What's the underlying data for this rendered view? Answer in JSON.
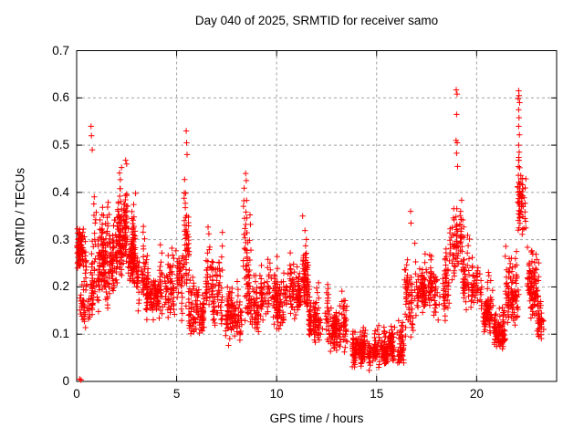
{
  "title": "Day 040 of 2025, SRMTID for receiver samo",
  "axes": {
    "xlabel": "GPS time / hours",
    "ylabel": "SRMTID / TECUs",
    "x_ticks": [
      {
        "label": "0",
        "value": 0
      },
      {
        "label": "5",
        "value": 5
      },
      {
        "label": "10",
        "value": 10
      },
      {
        "label": "15",
        "value": 15
      },
      {
        "label": "20",
        "value": 20
      }
    ],
    "y_ticks": [
      {
        "label": "0",
        "value": 0
      },
      {
        "label": "0.1",
        "value": 0.1
      },
      {
        "label": "0.2",
        "value": 0.2
      },
      {
        "label": "0.3",
        "value": 0.3
      },
      {
        "label": "0.4",
        "value": 0.4
      },
      {
        "label": "0.5",
        "value": 0.5
      },
      {
        "label": "0.6",
        "value": 0.6
      },
      {
        "label": "0.7",
        "value": 0.7
      }
    ]
  },
  "colors": {
    "marker": "#ff0000",
    "grid": "#a0a0a0",
    "axis": "#000000",
    "background": "#ffffff"
  },
  "chart_data": {
    "type": "scatter",
    "title": "Day 040 of 2025, SRMTID for receiver samo",
    "xlabel": "GPS time / hours",
    "ylabel": "SRMTID / TECUs",
    "xlim": [
      0,
      24
    ],
    "ylim": [
      0,
      0.7
    ],
    "grid": "dashed-gray-at-major-ticks",
    "legend": "none",
    "marker": "plus",
    "marker_color": "#ff0000",
    "seed": 42,
    "description": "Dense scatter of SRMTID values vs GPS time; bands give envelope clusters [x0,x1,y_lo,y_hi,n_points], outliers are individual extreme points [hour, TECU].",
    "bands": [
      {
        "x0": 0.0,
        "x1": 0.35,
        "y_lo": 0.24,
        "y_hi": 0.375,
        "n": 70
      },
      {
        "x0": 0.1,
        "x1": 0.45,
        "y_lo": 0.1,
        "y_hi": 0.22,
        "n": 25
      },
      {
        "x0": 0.35,
        "x1": 0.85,
        "y_lo": 0.12,
        "y_hi": 0.33,
        "n": 55
      },
      {
        "x0": 0.85,
        "x1": 1.35,
        "y_lo": 0.15,
        "y_hi": 0.44,
        "n": 85
      },
      {
        "x0": 1.35,
        "x1": 2.05,
        "y_lo": 0.16,
        "y_hi": 0.43,
        "n": 110
      },
      {
        "x0": 2.05,
        "x1": 2.55,
        "y_lo": 0.22,
        "y_hi": 0.47,
        "n": 120
      },
      {
        "x0": 2.55,
        "x1": 3.0,
        "y_lo": 0.2,
        "y_hi": 0.44,
        "n": 90
      },
      {
        "x0": 3.0,
        "x1": 3.6,
        "y_lo": 0.14,
        "y_hi": 0.36,
        "n": 85
      },
      {
        "x0": 3.6,
        "x1": 4.5,
        "y_lo": 0.12,
        "y_hi": 0.3,
        "n": 90
      },
      {
        "x0": 4.5,
        "x1": 5.25,
        "y_lo": 0.13,
        "y_hi": 0.35,
        "n": 85
      },
      {
        "x0": 5.25,
        "x1": 5.65,
        "y_lo": 0.16,
        "y_hi": 0.53,
        "n": 55
      },
      {
        "x0": 5.65,
        "x1": 6.5,
        "y_lo": 0.1,
        "y_hi": 0.28,
        "n": 95
      },
      {
        "x0": 6.5,
        "x1": 7.3,
        "y_lo": 0.11,
        "y_hi": 0.34,
        "n": 100
      },
      {
        "x0": 7.3,
        "x1": 8.25,
        "y_lo": 0.08,
        "y_hi": 0.26,
        "n": 100
      },
      {
        "x0": 8.25,
        "x1": 8.7,
        "y_lo": 0.13,
        "y_hi": 0.44,
        "n": 65
      },
      {
        "x0": 8.7,
        "x1": 9.6,
        "y_lo": 0.1,
        "y_hi": 0.3,
        "n": 90
      },
      {
        "x0": 9.6,
        "x1": 10.6,
        "y_lo": 0.11,
        "y_hi": 0.28,
        "n": 110
      },
      {
        "x0": 10.6,
        "x1": 11.15,
        "y_lo": 0.13,
        "y_hi": 0.3,
        "n": 85
      },
      {
        "x0": 11.15,
        "x1": 11.6,
        "y_lo": 0.14,
        "y_hi": 0.34,
        "n": 70
      },
      {
        "x0": 11.6,
        "x1": 12.6,
        "y_lo": 0.08,
        "y_hi": 0.24,
        "n": 105
      },
      {
        "x0": 12.6,
        "x1": 13.6,
        "y_lo": 0.06,
        "y_hi": 0.2,
        "n": 110
      },
      {
        "x0": 13.6,
        "x1": 14.6,
        "y_lo": 0.03,
        "y_hi": 0.15,
        "n": 120
      },
      {
        "x0": 14.6,
        "x1": 15.6,
        "y_lo": 0.025,
        "y_hi": 0.13,
        "n": 120
      },
      {
        "x0": 15.6,
        "x1": 16.45,
        "y_lo": 0.04,
        "y_hi": 0.16,
        "n": 100
      },
      {
        "x0": 16.45,
        "x1": 16.95,
        "y_lo": 0.09,
        "y_hi": 0.36,
        "n": 60
      },
      {
        "x0": 16.95,
        "x1": 17.65,
        "y_lo": 0.14,
        "y_hi": 0.3,
        "n": 80
      },
      {
        "x0": 17.65,
        "x1": 18.65,
        "y_lo": 0.13,
        "y_hi": 0.33,
        "n": 90
      },
      {
        "x0": 18.65,
        "x1": 19.35,
        "y_lo": 0.2,
        "y_hi": 0.46,
        "n": 80
      },
      {
        "x0": 19.35,
        "x1": 20.25,
        "y_lo": 0.15,
        "y_hi": 0.33,
        "n": 90
      },
      {
        "x0": 20.25,
        "x1": 20.85,
        "y_lo": 0.1,
        "y_hi": 0.25,
        "n": 80
      },
      {
        "x0": 20.85,
        "x1": 21.45,
        "y_lo": 0.07,
        "y_hi": 0.18,
        "n": 85
      },
      {
        "x0": 21.45,
        "x1": 22.05,
        "y_lo": 0.12,
        "y_hi": 0.33,
        "n": 90
      },
      {
        "x0": 22.05,
        "x1": 22.45,
        "y_lo": 0.28,
        "y_hi": 0.57,
        "n": 60
      },
      {
        "x0": 22.45,
        "x1": 23.05,
        "y_lo": 0.13,
        "y_hi": 0.34,
        "n": 95
      },
      {
        "x0": 23.05,
        "x1": 23.4,
        "y_lo": 0.08,
        "y_hi": 0.22,
        "n": 35
      }
    ],
    "outliers": [
      [
        0.15,
        0.005
      ],
      [
        0.22,
        0.003
      ],
      [
        0.72,
        0.54
      ],
      [
        0.74,
        0.52
      ],
      [
        0.78,
        0.49
      ],
      [
        2.45,
        0.468
      ],
      [
        2.5,
        0.46
      ],
      [
        5.48,
        0.53
      ],
      [
        5.5,
        0.505
      ],
      [
        5.52,
        0.48
      ],
      [
        8.45,
        0.44
      ],
      [
        8.48,
        0.425
      ],
      [
        11.3,
        0.35
      ],
      [
        16.7,
        0.36
      ],
      [
        16.72,
        0.335
      ],
      [
        18.98,
        0.617
      ],
      [
        19.02,
        0.608
      ],
      [
        19.0,
        0.565
      ],
      [
        18.97,
        0.51
      ],
      [
        19.03,
        0.505
      ],
      [
        19.0,
        0.483
      ],
      [
        19.05,
        0.455
      ],
      [
        22.1,
        0.615
      ],
      [
        22.12,
        0.605
      ],
      [
        22.08,
        0.598
      ],
      [
        22.15,
        0.59
      ],
      [
        22.1,
        0.575
      ],
      [
        22.12,
        0.558
      ],
      [
        22.1,
        0.54
      ],
      [
        22.14,
        0.522
      ],
      [
        22.1,
        0.5
      ],
      [
        22.13,
        0.485
      ],
      [
        22.1,
        0.468
      ],
      [
        22.15,
        0.452
      ],
      [
        23.3,
        0.13
      ],
      [
        23.35,
        0.11
      ]
    ]
  }
}
